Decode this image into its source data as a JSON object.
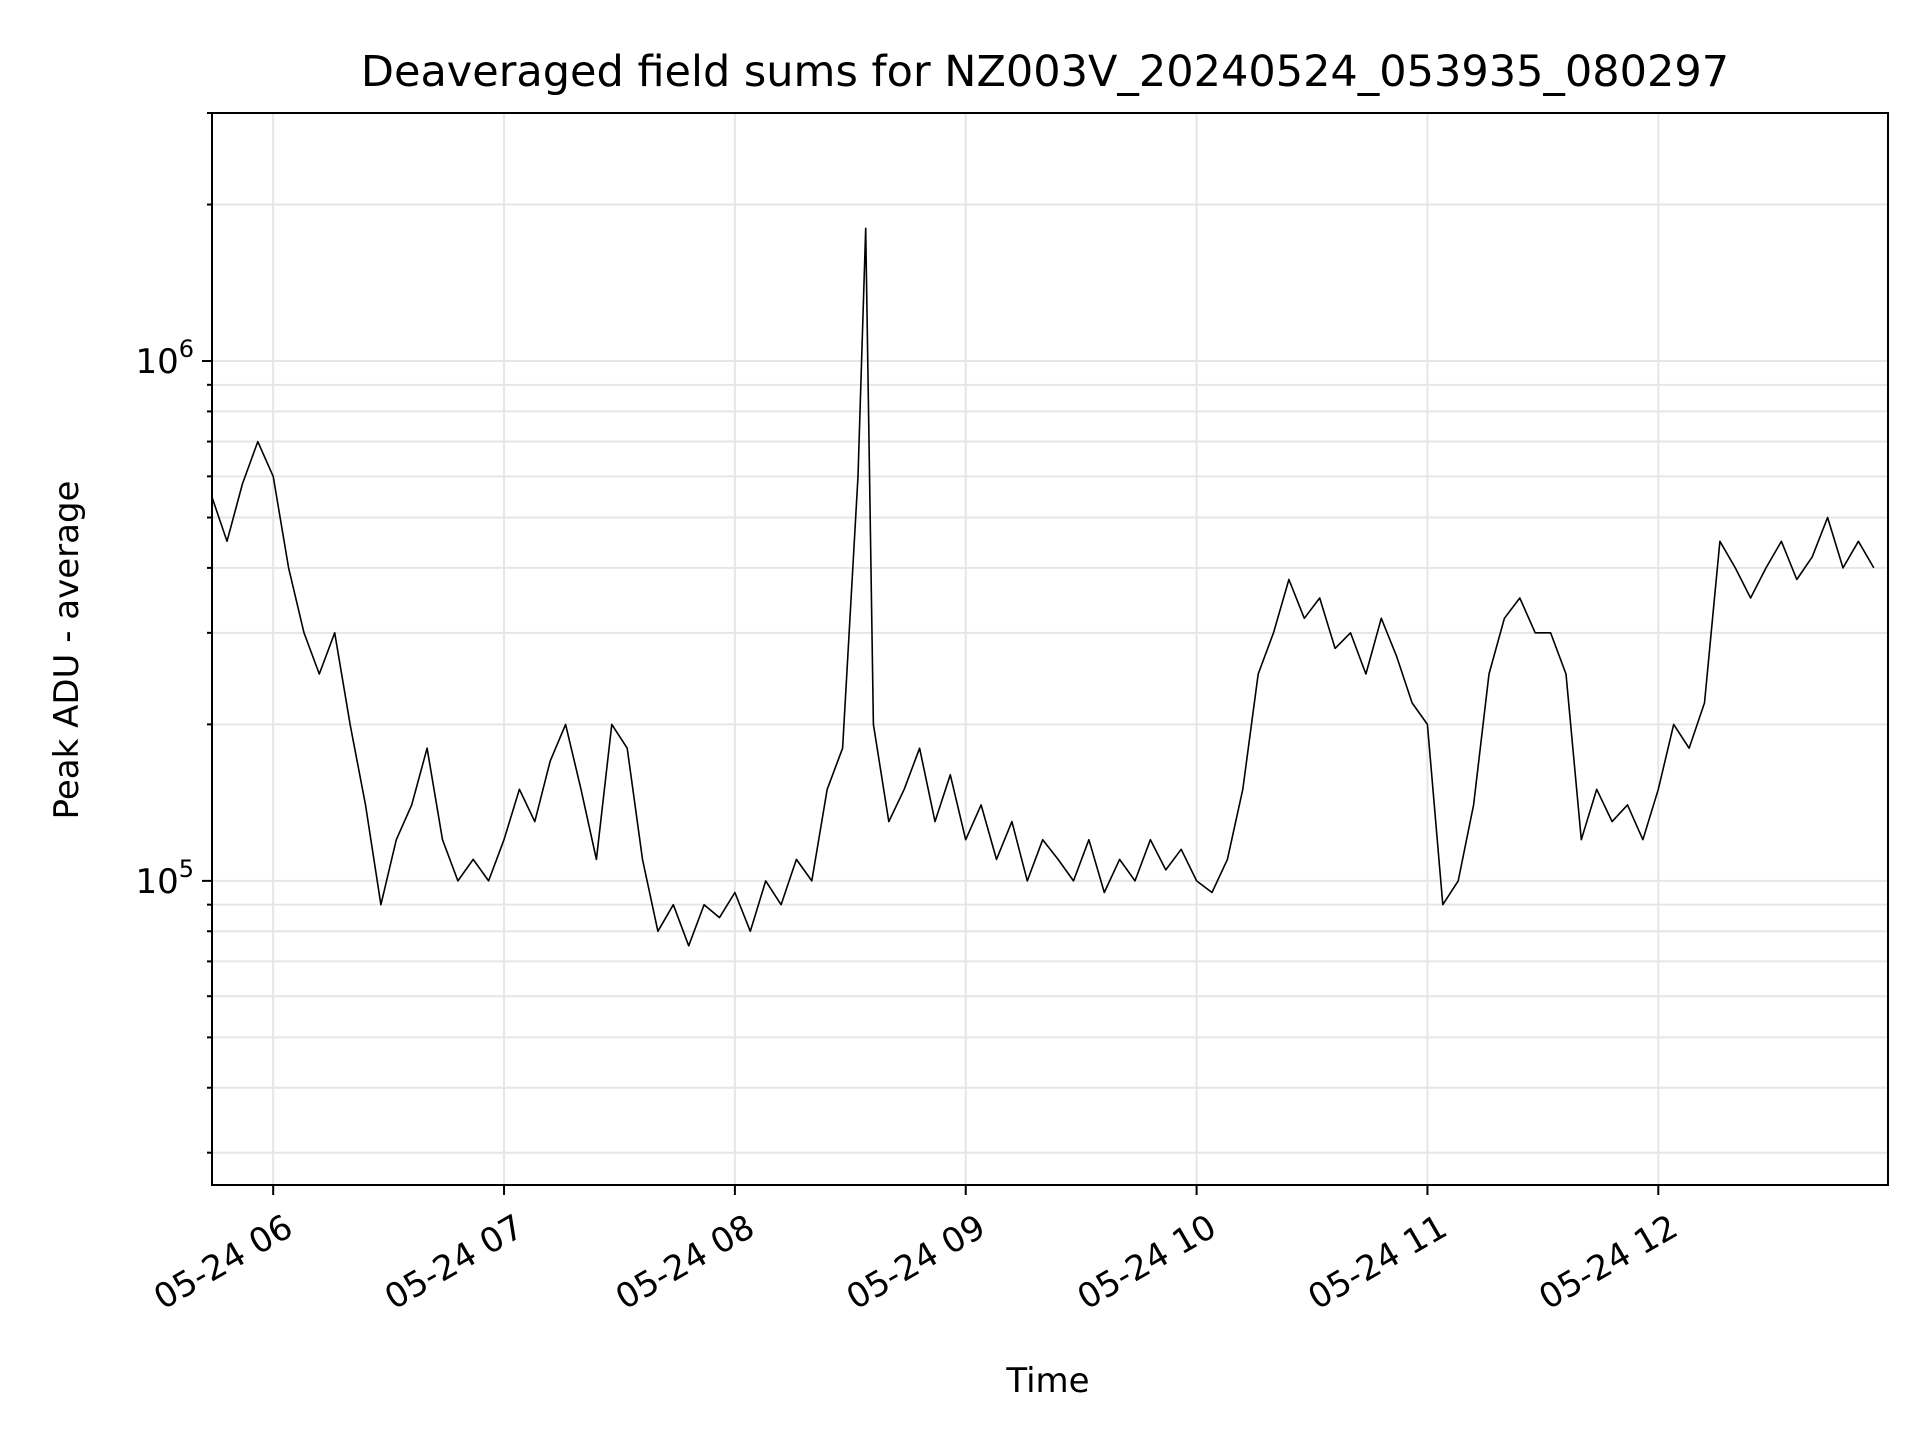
{
  "chart_data": {
    "type": "line",
    "title": "Deaveraged field sums for NZ003V_20240524_053935_080297",
    "xlabel": "Time",
    "ylabel": "Peak ADU - average",
    "yscale": "log",
    "ylim": [
      26000,
      3000000
    ],
    "xlim_hours": [
      5.735,
      12.995
    ],
    "x_ticks": [
      {
        "label": "05-24 06",
        "hour": 6
      },
      {
        "label": "05-24 07",
        "hour": 7
      },
      {
        "label": "05-24 08",
        "hour": 8
      },
      {
        "label": "05-24 09",
        "hour": 9
      },
      {
        "label": "05-24 10",
        "hour": 10
      },
      {
        "label": "05-24 11",
        "hour": 11
      },
      {
        "label": "05-24 12",
        "hour": 12
      }
    ],
    "y_ticks": [
      {
        "base": "10",
        "exp": "5",
        "value": 100000
      },
      {
        "base": "10",
        "exp": "6",
        "value": 1000000
      }
    ],
    "grid": true,
    "line_color": "#000000",
    "grid_color": "#e6e6e6",
    "series": [
      {
        "x": [
          "05:44",
          "05:48",
          "05:52",
          "05:56",
          "06:00",
          "06:04",
          "06:08",
          "06:12",
          "06:16",
          "06:20",
          "06:24",
          "06:28",
          "06:32",
          "06:36",
          "06:40",
          "06:44",
          "06:48",
          "06:52",
          "06:56",
          "07:00",
          "07:04",
          "07:08",
          "07:12",
          "07:16",
          "07:20",
          "07:24",
          "07:28",
          "07:32",
          "07:36",
          "07:40",
          "07:44",
          "07:48",
          "07:52",
          "07:56",
          "08:00",
          "08:04",
          "08:08",
          "08:12",
          "08:16",
          "08:20",
          "08:24",
          "08:28",
          "08:32",
          "08:34",
          "08:36",
          "08:40",
          "08:44",
          "08:48",
          "08:52",
          "08:56",
          "09:00",
          "09:04",
          "09:08",
          "09:12",
          "09:16",
          "09:20",
          "09:24",
          "09:28",
          "09:32",
          "09:36",
          "09:40",
          "09:44",
          "09:48",
          "09:52",
          "09:56",
          "10:00",
          "10:04",
          "10:08",
          "10:12",
          "10:16",
          "10:20",
          "10:24",
          "10:28",
          "10:32",
          "10:36",
          "10:40",
          "10:44",
          "10:48",
          "10:52",
          "10:56",
          "11:00",
          "11:04",
          "11:08",
          "11:12",
          "11:16",
          "11:20",
          "11:24",
          "11:28",
          "11:32",
          "11:36",
          "11:40",
          "11:44",
          "11:48",
          "11:52",
          "11:56",
          "12:00",
          "12:04",
          "12:08",
          "12:12",
          "12:16",
          "12:20",
          "12:24",
          "12:28",
          "12:32",
          "12:36",
          "12:40",
          "12:44",
          "12:48",
          "12:52",
          "12:56"
        ],
        "y": [
          550000,
          450000,
          580000,
          700000,
          600000,
          400000,
          300000,
          250000,
          300000,
          200000,
          140000,
          90000,
          120000,
          140000,
          180000,
          120000,
          100000,
          110000,
          100000,
          120000,
          150000,
          130000,
          170000,
          200000,
          150000,
          110000,
          200000,
          180000,
          110000,
          80000,
          90000,
          75000,
          90000,
          85000,
          95000,
          80000,
          100000,
          90000,
          110000,
          100000,
          150000,
          180000,
          600000,
          1800000,
          200000,
          130000,
          150000,
          180000,
          130000,
          160000,
          120000,
          140000,
          110000,
          130000,
          100000,
          120000,
          110000,
          100000,
          120000,
          95000,
          110000,
          100000,
          120000,
          105000,
          115000,
          100000,
          95000,
          110000,
          150000,
          250000,
          300000,
          380000,
          320000,
          350000,
          280000,
          300000,
          250000,
          320000,
          270000,
          220000,
          200000,
          90000,
          100000,
          140000,
          250000,
          320000,
          350000,
          300000,
          300000,
          250000,
          120000,
          150000,
          130000,
          140000,
          120000,
          150000,
          200000,
          180000,
          220000,
          450000,
          400000,
          350000,
          400000,
          450000,
          380000,
          420000,
          500000,
          400000,
          450000,
          400000
        ]
      }
    ]
  }
}
